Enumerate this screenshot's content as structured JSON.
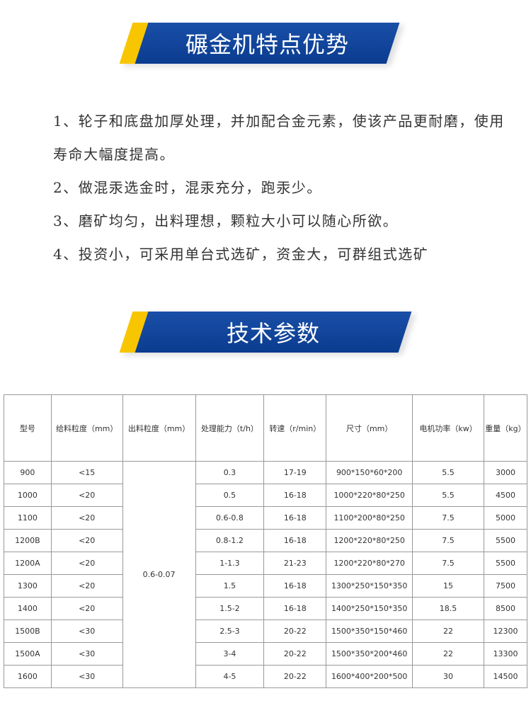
{
  "section1": {
    "title": "碾金机特点优势"
  },
  "features": [
    "1、轮子和底盘加厚处理，并加配合金元素，使该产品更耐磨，使用寿命大幅度提高。",
    "2、做混汞选金时，混汞充分，跑汞少。",
    "3、磨矿均匀，出料理想，颗粒大小可以随心所欲。",
    "4、投资小，可采用单台式选矿，资金大，可群组式选矿"
  ],
  "section2": {
    "title": "技术参数"
  },
  "table": {
    "headers": [
      "型号",
      "给料粒度（mm）",
      "出料粒度（mm）",
      "处理能力（t/h）",
      "转速（r/min）",
      "尺寸（mm）",
      "电机功率（kw）",
      "重量（kg）"
    ],
    "output_size": "0.6-0.07",
    "rows": [
      [
        "900",
        "<15",
        "0.3",
        "17-19",
        "900*150*60*200",
        "5.5",
        "3000"
      ],
      [
        "1000",
        "<20",
        "0.5",
        "16-18",
        "1000*220*80*250",
        "5.5",
        "4500"
      ],
      [
        "1100",
        "<20",
        "0.6-0.8",
        "16-18",
        "1100*200*80*250",
        "7.5",
        "5000"
      ],
      [
        "1200B",
        "<20",
        "0.8-1.2",
        "16-18",
        "1200*220*80*250",
        "7.5",
        "5500"
      ],
      [
        "1200A",
        "<20",
        "1-1.3",
        "21-23",
        "1200*220*80*270",
        "7.5",
        "5500"
      ],
      [
        "1300",
        "<20",
        "1.5",
        "16-18",
        "1300*250*150*350",
        "15",
        "7500"
      ],
      [
        "1400",
        "<20",
        "1.5-2",
        "16-18",
        "1400*250*150*350",
        "18.5",
        "8500"
      ],
      [
        "1500B",
        "<30",
        "2.5-3",
        "20-22",
        "1500*350*150*460",
        "22",
        "12300"
      ],
      [
        "1500A",
        "<30",
        "3-4",
        "20-22",
        "1500*350*200*460",
        "22",
        "13300"
      ],
      [
        "1600",
        "<30",
        "4-5",
        "20-22",
        "1600*400*200*500",
        "30",
        "14500"
      ]
    ]
  }
}
